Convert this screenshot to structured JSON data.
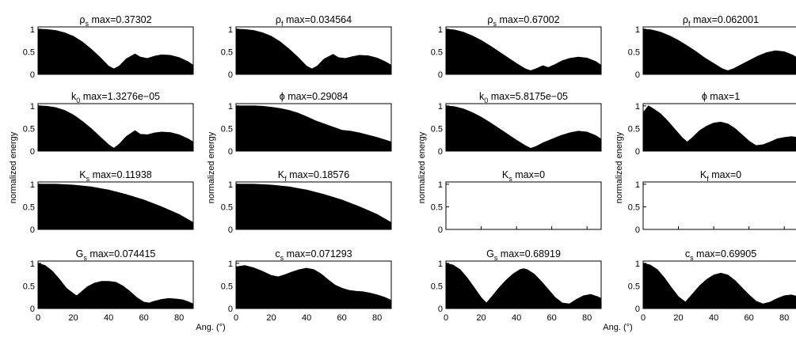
{
  "figure": {
    "ylabel": "normalized energy",
    "xlabel": "Ang. (°)",
    "xticks": [
      0,
      20,
      40,
      60,
      80
    ],
    "yticks": [
      "0",
      "0.5",
      "1"
    ],
    "xlim": [
      0,
      88
    ],
    "ylim": [
      0,
      1.05
    ]
  },
  "chart_data": [
    {
      "type": "area",
      "symbol": "ρ",
      "sub": "s",
      "title_max": "max=0.37302",
      "xlim": [
        0,
        88
      ],
      "ylim": [
        0,
        1.05
      ],
      "x": [
        0,
        5,
        10,
        15,
        20,
        25,
        30,
        35,
        40,
        43,
        46,
        50,
        55,
        58,
        62,
        66,
        70,
        75,
        80,
        85,
        88
      ],
      "y": [
        1,
        0.99,
        0.97,
        0.92,
        0.84,
        0.72,
        0.56,
        0.38,
        0.18,
        0.12,
        0.18,
        0.34,
        0.45,
        0.38,
        0.35,
        0.4,
        0.43,
        0.42,
        0.37,
        0.28,
        0.2
      ]
    },
    {
      "type": "area",
      "symbol": "ρ",
      "sub": "f",
      "title_max": "max=0.034564",
      "xlim": [
        0,
        88
      ],
      "ylim": [
        0,
        1.05
      ],
      "x": [
        0,
        5,
        10,
        15,
        20,
        25,
        30,
        35,
        40,
        43,
        46,
        50,
        55,
        58,
        62,
        66,
        70,
        75,
        80,
        85,
        88
      ],
      "y": [
        1,
        0.99,
        0.97,
        0.92,
        0.84,
        0.72,
        0.56,
        0.38,
        0.18,
        0.12,
        0.18,
        0.34,
        0.44,
        0.37,
        0.35,
        0.39,
        0.42,
        0.41,
        0.36,
        0.27,
        0.2
      ]
    },
    {
      "type": "area",
      "symbol": "ρ",
      "sub": "s",
      "title_max": "max=0.67002",
      "xlim": [
        0,
        88
      ],
      "ylim": [
        0,
        1.05
      ],
      "x": [
        0,
        5,
        10,
        15,
        20,
        25,
        30,
        35,
        40,
        45,
        48,
        51,
        55,
        58,
        62,
        66,
        70,
        75,
        80,
        85,
        88
      ],
      "y": [
        1,
        0.98,
        0.93,
        0.85,
        0.75,
        0.63,
        0.5,
        0.37,
        0.24,
        0.12,
        0.08,
        0.12,
        0.19,
        0.15,
        0.22,
        0.3,
        0.35,
        0.38,
        0.36,
        0.28,
        0.2
      ]
    },
    {
      "type": "area",
      "symbol": "ρ",
      "sub": "f",
      "title_max": "max=0.062001",
      "xlim": [
        0,
        88
      ],
      "ylim": [
        0,
        1.05
      ],
      "x": [
        0,
        5,
        10,
        15,
        20,
        25,
        30,
        35,
        40,
        45,
        48,
        51,
        55,
        60,
        65,
        70,
        75,
        80,
        85,
        88
      ],
      "y": [
        1,
        0.98,
        0.93,
        0.85,
        0.75,
        0.63,
        0.5,
        0.36,
        0.24,
        0.12,
        0.08,
        0.12,
        0.2,
        0.3,
        0.4,
        0.48,
        0.52,
        0.5,
        0.42,
        0.35
      ]
    },
    {
      "type": "area",
      "symbol": "k",
      "sub": "0",
      "title_max": "max=1.3276e−05",
      "xlim": [
        0,
        88
      ],
      "ylim": [
        0,
        1.05
      ],
      "x": [
        0,
        5,
        10,
        15,
        20,
        25,
        30,
        35,
        40,
        43,
        46,
        50,
        55,
        58,
        62,
        66,
        70,
        75,
        80,
        85,
        88
      ],
      "y": [
        1,
        0.99,
        0.96,
        0.9,
        0.8,
        0.66,
        0.5,
        0.32,
        0.14,
        0.06,
        0.15,
        0.32,
        0.45,
        0.37,
        0.36,
        0.4,
        0.42,
        0.41,
        0.36,
        0.27,
        0.2
      ]
    },
    {
      "type": "area",
      "symbol": "ϕ",
      "sub": "",
      "title_max": "max=0.29084",
      "xlim": [
        0,
        88
      ],
      "ylim": [
        0,
        1.05
      ],
      "x": [
        0,
        5,
        10,
        15,
        20,
        25,
        30,
        35,
        40,
        45,
        50,
        55,
        60,
        65,
        70,
        75,
        80,
        85,
        88
      ],
      "y": [
        1,
        1,
        1,
        0.99,
        0.97,
        0.94,
        0.9,
        0.84,
        0.76,
        0.67,
        0.6,
        0.53,
        0.46,
        0.44,
        0.4,
        0.35,
        0.3,
        0.24,
        0.2
      ]
    },
    {
      "type": "area",
      "symbol": "k",
      "sub": "0",
      "title_max": "max=5.8175e−05",
      "xlim": [
        0,
        88
      ],
      "ylim": [
        0,
        1.05
      ],
      "x": [
        0,
        5,
        10,
        15,
        20,
        25,
        30,
        35,
        40,
        45,
        48,
        51,
        55,
        60,
        65,
        70,
        75,
        80,
        85,
        88
      ],
      "y": [
        1,
        0.98,
        0.93,
        0.85,
        0.75,
        0.63,
        0.5,
        0.37,
        0.24,
        0.12,
        0.06,
        0.1,
        0.18,
        0.26,
        0.34,
        0.4,
        0.44,
        0.42,
        0.34,
        0.26
      ]
    },
    {
      "type": "area",
      "symbol": "ϕ",
      "sub": "",
      "title_max": "max=1",
      "xlim": [
        0,
        88
      ],
      "ylim": [
        0,
        1.05
      ],
      "x": [
        0,
        3,
        6,
        10,
        14,
        18,
        22,
        25,
        28,
        32,
        36,
        40,
        44,
        48,
        52,
        56,
        60,
        64,
        68,
        72,
        76,
        80,
        84,
        88
      ],
      "y": [
        0.85,
        1,
        0.93,
        0.82,
        0.66,
        0.48,
        0.3,
        0.2,
        0.3,
        0.45,
        0.55,
        0.62,
        0.64,
        0.6,
        0.5,
        0.36,
        0.22,
        0.12,
        0.14,
        0.2,
        0.27,
        0.3,
        0.32,
        0.3
      ]
    },
    {
      "type": "area",
      "symbol": "K",
      "sub": "s",
      "title_max": "max=0.11938",
      "xlim": [
        0,
        88
      ],
      "ylim": [
        0,
        1.05
      ],
      "x": [
        0,
        10,
        20,
        30,
        40,
        50,
        60,
        70,
        80,
        88
      ],
      "y": [
        1,
        1,
        0.98,
        0.94,
        0.87,
        0.77,
        0.65,
        0.5,
        0.33,
        0.15
      ]
    },
    {
      "type": "area",
      "symbol": "K",
      "sub": "f",
      "title_max": "max=0.18576",
      "xlim": [
        0,
        88
      ],
      "ylim": [
        0,
        1.05
      ],
      "x": [
        0,
        10,
        20,
        30,
        40,
        50,
        60,
        70,
        80,
        88
      ],
      "y": [
        1,
        1,
        0.98,
        0.94,
        0.87,
        0.77,
        0.65,
        0.5,
        0.33,
        0.15
      ]
    },
    {
      "type": "area",
      "symbol": "K",
      "sub": "s",
      "title_max": "max=0",
      "xlim": [
        0,
        88
      ],
      "ylim": [
        0,
        1.05
      ],
      "x": [
        0,
        88
      ],
      "y": [
        0,
        0
      ]
    },
    {
      "type": "area",
      "symbol": "K",
      "sub": "f",
      "title_max": "max=0",
      "xlim": [
        0,
        88
      ],
      "ylim": [
        0,
        1.05
      ],
      "x": [
        0,
        88
      ],
      "y": [
        0,
        0
      ]
    },
    {
      "type": "area",
      "symbol": "G",
      "sub": "s",
      "title_max": "max=0.074415",
      "xlim": [
        0,
        88
      ],
      "ylim": [
        0,
        1.05
      ],
      "x": [
        0,
        4,
        8,
        12,
        16,
        20,
        22,
        25,
        28,
        32,
        36,
        40,
        44,
        48,
        52,
        56,
        60,
        63,
        66,
        70,
        74,
        78,
        82,
        85,
        88
      ],
      "y": [
        1,
        0.95,
        0.83,
        0.65,
        0.45,
        0.33,
        0.28,
        0.38,
        0.48,
        0.56,
        0.6,
        0.6,
        0.58,
        0.5,
        0.38,
        0.24,
        0.14,
        0.12,
        0.16,
        0.2,
        0.22,
        0.21,
        0.19,
        0.15,
        0.1
      ]
    },
    {
      "type": "area",
      "symbol": "c",
      "sub": "s",
      "title_max": "max=0.071293",
      "xlim": [
        0,
        88
      ],
      "ylim": [
        0,
        1.05
      ],
      "x": [
        0,
        5,
        10,
        15,
        20,
        24,
        28,
        32,
        36,
        40,
        44,
        48,
        52,
        56,
        60,
        64,
        68,
        72,
        76,
        80,
        84,
        88
      ],
      "y": [
        0.92,
        0.95,
        0.9,
        0.82,
        0.73,
        0.7,
        0.75,
        0.81,
        0.86,
        0.89,
        0.86,
        0.77,
        0.64,
        0.52,
        0.45,
        0.4,
        0.38,
        0.37,
        0.34,
        0.3,
        0.25,
        0.18
      ]
    },
    {
      "type": "area",
      "symbol": "G",
      "sub": "s",
      "title_max": "max=0.68919",
      "xlim": [
        0,
        88
      ],
      "ylim": [
        0,
        1.05
      ],
      "x": [
        0,
        4,
        8,
        12,
        16,
        20,
        23,
        26,
        30,
        34,
        38,
        42,
        44,
        46,
        50,
        54,
        58,
        62,
        66,
        70,
        74,
        78,
        82,
        86,
        88
      ],
      "y": [
        1,
        0.96,
        0.86,
        0.68,
        0.46,
        0.24,
        0.12,
        0.26,
        0.45,
        0.62,
        0.76,
        0.86,
        0.88,
        0.86,
        0.76,
        0.6,
        0.42,
        0.24,
        0.12,
        0.1,
        0.2,
        0.28,
        0.31,
        0.26,
        0.22
      ]
    },
    {
      "type": "area",
      "symbol": "c",
      "sub": "s",
      "title_max": "max=0.69905",
      "xlim": [
        0,
        88
      ],
      "ylim": [
        0,
        1.05
      ],
      "x": [
        0,
        4,
        8,
        12,
        16,
        20,
        24,
        28,
        32,
        36,
        40,
        44,
        48,
        52,
        56,
        60,
        64,
        68,
        72,
        76,
        80,
        84,
        88
      ],
      "y": [
        1,
        0.96,
        0.86,
        0.68,
        0.46,
        0.26,
        0.14,
        0.32,
        0.5,
        0.64,
        0.74,
        0.78,
        0.74,
        0.62,
        0.46,
        0.3,
        0.16,
        0.1,
        0.14,
        0.22,
        0.28,
        0.3,
        0.26
      ]
    }
  ]
}
